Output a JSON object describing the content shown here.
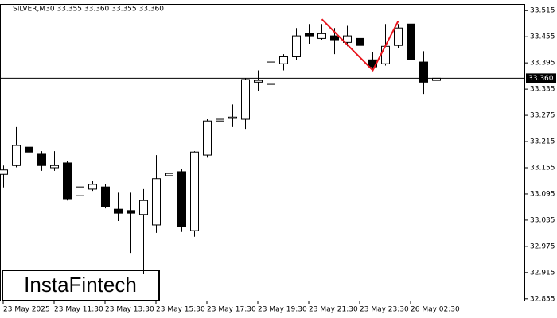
{
  "chart_data": {
    "type": "candlestick",
    "title": "SILVER,M30  33.355 33.360 33.355 33.360",
    "watermark": "InstaFintech",
    "categories": [
      "23 May 2025",
      null,
      null,
      null,
      "23 May 11:30",
      null,
      null,
      null,
      "23 May 13:30",
      null,
      null,
      null,
      "23 May 15:30",
      null,
      null,
      null,
      "23 May 17:30",
      null,
      null,
      null,
      "23 May 19:30",
      null,
      null,
      null,
      "23 May 21:30",
      null,
      null,
      null,
      "23 May 23:30",
      null,
      null,
      null,
      "26 May 02:30",
      null,
      null
    ],
    "open": [
      33.14,
      33.16,
      33.202,
      33.186,
      33.155,
      33.166,
      33.091,
      33.106,
      33.111,
      33.06,
      33.057,
      33.048,
      33.024,
      33.137,
      33.146,
      33.011,
      33.184,
      33.262,
      33.268,
      33.266,
      33.351,
      33.346,
      33.393,
      33.409,
      33.462,
      33.451,
      33.457,
      33.442,
      33.451,
      33.402,
      33.393,
      33.435,
      33.484,
      33.397,
      33.355
    ],
    "high": [
      33.16,
      33.248,
      33.22,
      33.193,
      33.193,
      33.171,
      33.12,
      33.124,
      33.117,
      33.098,
      33.098,
      33.106,
      33.184,
      33.184,
      33.153,
      33.193,
      33.266,
      33.288,
      33.3,
      33.36,
      33.378,
      33.402,
      33.415,
      33.475,
      33.484,
      33.484,
      33.475,
      33.48,
      33.457,
      33.42,
      33.484,
      33.484,
      33.484,
      33.422,
      33.36
    ],
    "low": [
      33.11,
      33.156,
      33.186,
      33.148,
      33.148,
      33.08,
      33.07,
      33.102,
      33.062,
      33.033,
      32.96,
      32.911,
      33.006,
      33.051,
      33.008,
      32.997,
      33.178,
      33.208,
      33.248,
      33.244,
      33.33,
      33.342,
      33.378,
      33.402,
      33.439,
      33.448,
      33.415,
      33.433,
      33.426,
      33.378,
      33.389,
      33.429,
      33.393,
      33.324,
      33.355
    ],
    "close": [
      33.15,
      33.206,
      33.191,
      33.16,
      33.16,
      33.084,
      33.111,
      33.117,
      33.066,
      33.051,
      33.051,
      33.08,
      33.13,
      33.142,
      33.02,
      33.191,
      33.262,
      33.266,
      33.271,
      33.357,
      33.355,
      33.397,
      33.409,
      33.457,
      33.457,
      33.462,
      33.448,
      33.457,
      33.435,
      33.386,
      33.433,
      33.475,
      33.402,
      33.351,
      33.36
    ],
    "up_color": "#ffffff",
    "down_color": "#000000",
    "current_price": {
      "value": 33.36,
      "label": "33.360"
    },
    "pattern": {
      "color": "#e8141c",
      "x": [
        25,
        29,
        31
      ],
      "values": [
        33.495,
        33.378,
        33.491
      ]
    },
    "ylim": [
      32.851,
      33.53
    ],
    "yticks": [
      33.515,
      33.455,
      33.395,
      33.335,
      33.275,
      33.215,
      33.155,
      33.095,
      33.035,
      32.975,
      32.915,
      32.855
    ]
  }
}
